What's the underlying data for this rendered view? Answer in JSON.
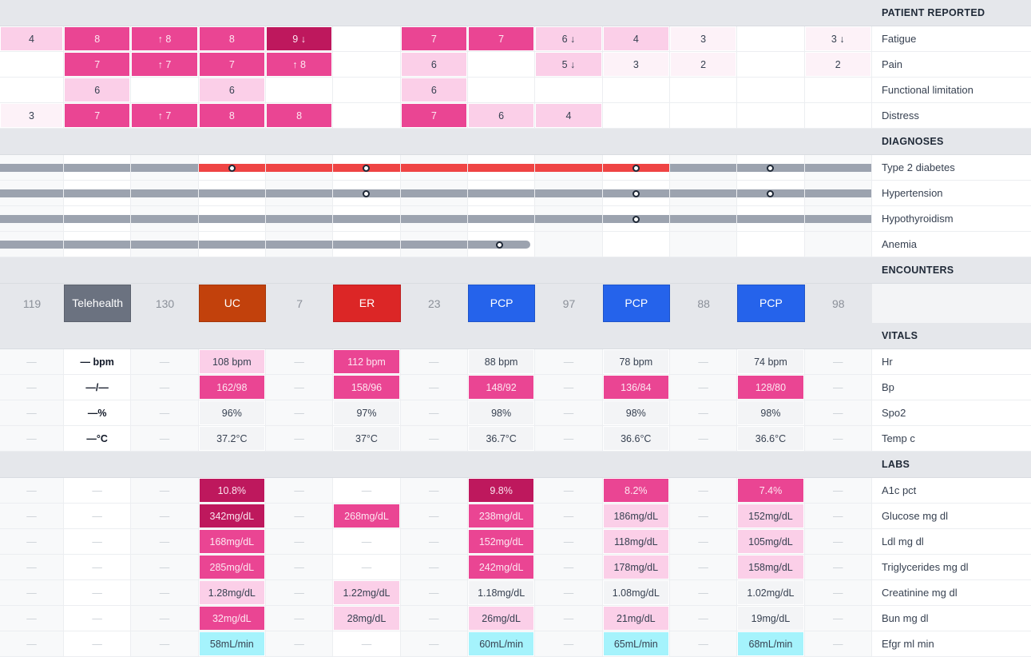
{
  "colors": {
    "active": "#ef4444",
    "inactive": "#9ca3af",
    "Telehealth": "#6b7280",
    "UC": "#c2410c",
    "ER": "#dc2626",
    "PCP": "#2563eb"
  },
  "patient_reported": {
    "title": "PATIENT REPORTED",
    "rows": [
      {
        "label": "Fatigue",
        "cells": [
          [
            "4",
            "l"
          ],
          [
            "8",
            "h"
          ],
          [
            "↑ 8",
            "h"
          ],
          [
            "8",
            "h"
          ],
          [
            "9 ↓",
            "d"
          ],
          [
            "",
            ""
          ],
          [
            "7",
            "h"
          ],
          [
            "7",
            "h"
          ],
          [
            "6 ↓",
            "l"
          ],
          [
            "4",
            "l"
          ],
          [
            "3",
            "x"
          ],
          [
            "",
            ""
          ],
          [
            "3 ↓",
            "x"
          ]
        ]
      },
      {
        "label": "Pain",
        "cells": [
          [
            "",
            ""
          ],
          [
            "7",
            "h"
          ],
          [
            "↑ 7",
            "h"
          ],
          [
            "7",
            "h"
          ],
          [
            "↑ 8",
            "h"
          ],
          [
            "",
            ""
          ],
          [
            "6",
            "l"
          ],
          [
            "",
            ""
          ],
          [
            "5 ↓",
            "l"
          ],
          [
            "3",
            "x"
          ],
          [
            "2",
            "x"
          ],
          [
            "",
            ""
          ],
          [
            "2",
            "x"
          ]
        ]
      },
      {
        "label": "Functional limitation",
        "cells": [
          [
            "",
            ""
          ],
          [
            "6",
            "l"
          ],
          [
            "",
            ""
          ],
          [
            "6",
            "l"
          ],
          [
            "",
            ""
          ],
          [
            "",
            ""
          ],
          [
            "6",
            "l"
          ],
          [
            "",
            ""
          ],
          [
            "",
            ""
          ],
          [
            "",
            ""
          ],
          [
            "",
            ""
          ],
          [
            "",
            ""
          ],
          [
            "",
            ""
          ]
        ]
      },
      {
        "label": "Distress",
        "cells": [
          [
            "3",
            "x"
          ],
          [
            "7",
            "h"
          ],
          [
            "↑ 7",
            "h"
          ],
          [
            "8",
            "h"
          ],
          [
            "8",
            "h"
          ],
          [
            "",
            ""
          ],
          [
            "7",
            "h"
          ],
          [
            "6",
            "l"
          ],
          [
            "4",
            "l"
          ],
          [
            "",
            ""
          ],
          [
            "",
            ""
          ],
          [
            "",
            ""
          ],
          [
            "",
            ""
          ]
        ]
      }
    ]
  },
  "diagnoses": {
    "title": "DIAGNOSES",
    "rows": [
      {
        "label": "Type 2 diabetes",
        "segments": [
          "inactive",
          "inactive",
          "inactive",
          "active",
          "active",
          "active",
          "active",
          "active",
          "active",
          "active",
          "inactive",
          "inactive",
          "inactive"
        ],
        "markers": [
          3,
          5,
          9,
          11
        ]
      },
      {
        "label": "Hypertension",
        "segments": [
          "inactive",
          "inactive",
          "inactive",
          "inactive",
          "inactive",
          "inactive",
          "inactive",
          "inactive",
          "inactive",
          "inactive",
          "inactive",
          "inactive",
          "inactive"
        ],
        "markers": [
          5,
          9,
          11
        ]
      },
      {
        "label": "Hypothyroidism",
        "segments": [
          "inactive",
          "inactive",
          "inactive",
          "inactive",
          "inactive",
          "inactive",
          "inactive",
          "inactive",
          "inactive",
          "inactive",
          "inactive",
          "inactive",
          "inactive"
        ],
        "markers": [
          9
        ]
      },
      {
        "label": "Anemia",
        "segments": [
          "inactive",
          "inactive",
          "inactive",
          "inactive",
          "inactive",
          "inactive",
          "inactive",
          "inactive-end",
          null,
          null,
          null,
          null,
          null
        ],
        "markers": [
          7
        ]
      }
    ]
  },
  "encounters": {
    "title": "ENCOUNTERS",
    "cells": [
      "119",
      "Telehealth",
      "130",
      "UC",
      "7",
      "ER",
      "23",
      "PCP",
      "97",
      "PCP",
      "88",
      "PCP",
      "98"
    ]
  },
  "vitals": {
    "title": "VITALS",
    "rows": [
      {
        "label": "Hr",
        "cells": [
          [
            "—",
            ""
          ],
          [
            "— bpm",
            "b"
          ],
          [
            "—",
            ""
          ],
          [
            "108 bpm",
            "l"
          ],
          [
            "—",
            ""
          ],
          [
            "112 bpm",
            "h"
          ],
          [
            "—",
            ""
          ],
          [
            "88 bpm",
            "g"
          ],
          [
            "—",
            ""
          ],
          [
            "78 bpm",
            "g"
          ],
          [
            "—",
            ""
          ],
          [
            "74 bpm",
            "g"
          ],
          [
            "—",
            ""
          ]
        ]
      },
      {
        "label": "Bp",
        "cells": [
          [
            "—",
            ""
          ],
          [
            "—/—",
            "b"
          ],
          [
            "—",
            ""
          ],
          [
            "162/98",
            "h"
          ],
          [
            "—",
            ""
          ],
          [
            "158/96",
            "h"
          ],
          [
            "—",
            ""
          ],
          [
            "148/92",
            "h"
          ],
          [
            "—",
            ""
          ],
          [
            "136/84",
            "h"
          ],
          [
            "—",
            ""
          ],
          [
            "128/80",
            "h"
          ],
          [
            "—",
            ""
          ]
        ]
      },
      {
        "label": "Spo2",
        "cells": [
          [
            "—",
            ""
          ],
          [
            "—%",
            "b"
          ],
          [
            "—",
            ""
          ],
          [
            "96%",
            "g"
          ],
          [
            "—",
            ""
          ],
          [
            "97%",
            "g"
          ],
          [
            "—",
            ""
          ],
          [
            "98%",
            "g"
          ],
          [
            "—",
            ""
          ],
          [
            "98%",
            "g"
          ],
          [
            "—",
            ""
          ],
          [
            "98%",
            "g"
          ],
          [
            "—",
            ""
          ]
        ]
      },
      {
        "label": "Temp c",
        "cells": [
          [
            "—",
            ""
          ],
          [
            "—°C",
            "b"
          ],
          [
            "—",
            ""
          ],
          [
            "37.2°C",
            "g"
          ],
          [
            "—",
            ""
          ],
          [
            "37°C",
            "g"
          ],
          [
            "—",
            ""
          ],
          [
            "36.7°C",
            "g"
          ],
          [
            "—",
            ""
          ],
          [
            "36.6°C",
            "g"
          ],
          [
            "—",
            ""
          ],
          [
            "36.6°C",
            "g"
          ],
          [
            "—",
            ""
          ]
        ]
      }
    ]
  },
  "labs": {
    "title": "LABS",
    "rows": [
      {
        "label": "A1c pct",
        "cells": [
          [
            "—",
            ""
          ],
          [
            "—",
            ""
          ],
          [
            "—",
            ""
          ],
          [
            "10.8%",
            "d"
          ],
          [
            "—",
            ""
          ],
          [
            "—",
            ""
          ],
          [
            "—",
            ""
          ],
          [
            "9.8%",
            "d"
          ],
          [
            "—",
            ""
          ],
          [
            "8.2%",
            "h"
          ],
          [
            "—",
            ""
          ],
          [
            "7.4%",
            "h"
          ],
          [
            "—",
            ""
          ]
        ]
      },
      {
        "label": "Glucose mg dl",
        "cells": [
          [
            "—",
            ""
          ],
          [
            "—",
            ""
          ],
          [
            "—",
            ""
          ],
          [
            "342mg/dL",
            "d"
          ],
          [
            "—",
            ""
          ],
          [
            "268mg/dL",
            "h"
          ],
          [
            "—",
            ""
          ],
          [
            "238mg/dL",
            "h"
          ],
          [
            "—",
            ""
          ],
          [
            "186mg/dL",
            "l"
          ],
          [
            "—",
            ""
          ],
          [
            "152mg/dL",
            "l"
          ],
          [
            "—",
            ""
          ]
        ]
      },
      {
        "label": "Ldl mg dl",
        "cells": [
          [
            "—",
            ""
          ],
          [
            "—",
            ""
          ],
          [
            "—",
            ""
          ],
          [
            "168mg/dL",
            "h"
          ],
          [
            "—",
            ""
          ],
          [
            "—",
            ""
          ],
          [
            "—",
            ""
          ],
          [
            "152mg/dL",
            "h"
          ],
          [
            "—",
            ""
          ],
          [
            "118mg/dL",
            "l"
          ],
          [
            "—",
            ""
          ],
          [
            "105mg/dL",
            "l"
          ],
          [
            "—",
            ""
          ]
        ]
      },
      {
        "label": "Triglycerides mg dl",
        "cells": [
          [
            "—",
            ""
          ],
          [
            "—",
            ""
          ],
          [
            "—",
            ""
          ],
          [
            "285mg/dL",
            "h"
          ],
          [
            "—",
            ""
          ],
          [
            "—",
            ""
          ],
          [
            "—",
            ""
          ],
          [
            "242mg/dL",
            "h"
          ],
          [
            "—",
            ""
          ],
          [
            "178mg/dL",
            "l"
          ],
          [
            "—",
            ""
          ],
          [
            "158mg/dL",
            "l"
          ],
          [
            "—",
            ""
          ]
        ]
      },
      {
        "label": "Creatinine mg dl",
        "cells": [
          [
            "—",
            ""
          ],
          [
            "—",
            ""
          ],
          [
            "—",
            ""
          ],
          [
            "1.28mg/dL",
            "l"
          ],
          [
            "—",
            ""
          ],
          [
            "1.22mg/dL",
            "l"
          ],
          [
            "—",
            ""
          ],
          [
            "1.18mg/dL",
            "g"
          ],
          [
            "—",
            ""
          ],
          [
            "1.08mg/dL",
            "g"
          ],
          [
            "—",
            ""
          ],
          [
            "1.02mg/dL",
            "g"
          ],
          [
            "—",
            ""
          ]
        ]
      },
      {
        "label": "Bun mg dl",
        "cells": [
          [
            "—",
            ""
          ],
          [
            "—",
            ""
          ],
          [
            "—",
            ""
          ],
          [
            "32mg/dL",
            "h"
          ],
          [
            "—",
            ""
          ],
          [
            "28mg/dL",
            "l"
          ],
          [
            "—",
            ""
          ],
          [
            "26mg/dL",
            "l"
          ],
          [
            "—",
            ""
          ],
          [
            "21mg/dL",
            "l"
          ],
          [
            "—",
            ""
          ],
          [
            "19mg/dL",
            "g"
          ],
          [
            "—",
            ""
          ]
        ]
      },
      {
        "label": "Efgr ml min",
        "cells": [
          [
            "—",
            ""
          ],
          [
            "—",
            ""
          ],
          [
            "—",
            ""
          ],
          [
            "58mL/min",
            "c"
          ],
          [
            "—",
            ""
          ],
          [
            "—",
            ""
          ],
          [
            "—",
            ""
          ],
          [
            "60mL/min",
            "c"
          ],
          [
            "—",
            ""
          ],
          [
            "65mL/min",
            "c"
          ],
          [
            "—",
            ""
          ],
          [
            "68mL/min",
            "c"
          ],
          [
            "—",
            ""
          ]
        ]
      }
    ]
  }
}
